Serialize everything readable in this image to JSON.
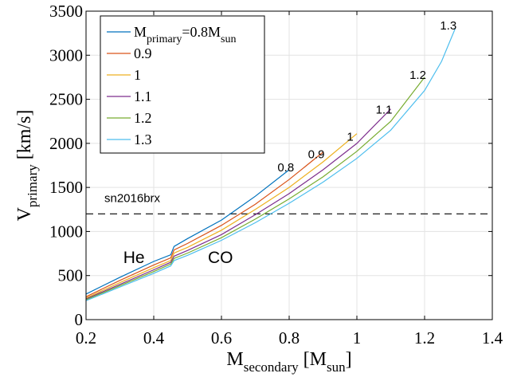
{
  "chart_data": {
    "type": "line",
    "xlabel": {
      "main": "M",
      "sub": "secondary",
      "mid": " [M",
      "sub2": "sun",
      "end": "]"
    },
    "ylabel": {
      "main": "V",
      "sub": "primary",
      "end": " [km/s]"
    },
    "xlim": [
      0.2,
      1.4
    ],
    "ylim": [
      0,
      3500
    ],
    "x_ticks": [
      {
        "value": 0.2,
        "label": "0.2"
      },
      {
        "value": 0.4,
        "label": "0.4"
      },
      {
        "value": 0.6,
        "label": "0.6"
      },
      {
        "value": 0.8,
        "label": "0.8"
      },
      {
        "value": 1.0,
        "label": "1"
      },
      {
        "value": 1.2,
        "label": "1.2"
      },
      {
        "value": 1.4,
        "label": "1.4"
      }
    ],
    "y_ticks": [
      {
        "value": 0,
        "label": "0"
      },
      {
        "value": 500,
        "label": "500"
      },
      {
        "value": 1000,
        "label": "1000"
      },
      {
        "value": 1500,
        "label": "1500"
      },
      {
        "value": 2000,
        "label": "2000"
      },
      {
        "value": 2500,
        "label": "2500"
      },
      {
        "value": 3000,
        "label": "3000"
      },
      {
        "value": 3500,
        "label": "3500"
      }
    ],
    "grid": true,
    "legend": {
      "placement": "top-left",
      "first": {
        "main": "M",
        "sub": "primary",
        "mid": "=0.8M",
        "sub2": "sun"
      }
    },
    "series": [
      {
        "name": "0.8",
        "label": "0.8",
        "color": "#0072bd",
        "end_label_at": [
          0.79,
          1680
        ],
        "x": [
          0.2,
          0.3,
          0.4,
          0.45,
          0.46,
          0.5,
          0.6,
          0.7,
          0.8
        ],
        "y": [
          290,
          480,
          660,
          735,
          830,
          920,
          1130,
          1400,
          1700
        ]
      },
      {
        "name": "0.9",
        "label": "0.9",
        "color": "#d95319",
        "end_label_at": [
          0.88,
          1830
        ],
        "x": [
          0.2,
          0.3,
          0.4,
          0.45,
          0.46,
          0.5,
          0.6,
          0.7,
          0.8,
          0.9
        ],
        "y": [
          260,
          445,
          620,
          700,
          790,
          865,
          1070,
          1310,
          1590,
          1900
        ]
      },
      {
        "name": "1",
        "label": "1",
        "color": "#edb120",
        "end_label_at": [
          0.98,
          2030
        ],
        "x": [
          0.2,
          0.3,
          0.4,
          0.45,
          0.46,
          0.5,
          0.6,
          0.7,
          0.8,
          0.9,
          1.0
        ],
        "y": [
          245,
          420,
          590,
          670,
          755,
          820,
          1015,
          1250,
          1500,
          1790,
          2110
        ]
      },
      {
        "name": "1.1",
        "label": "1.1",
        "color": "#7e2f8e",
        "end_label_at": [
          1.08,
          2340
        ],
        "x": [
          0.2,
          0.3,
          0.4,
          0.45,
          0.46,
          0.5,
          0.6,
          0.7,
          0.8,
          0.9,
          1.0,
          1.1
        ],
        "y": [
          235,
          400,
          565,
          650,
          720,
          785,
          965,
          1190,
          1430,
          1700,
          2000,
          2390
        ]
      },
      {
        "name": "1.2",
        "label": "1.2",
        "color": "#77ac30",
        "end_label_at": [
          1.18,
          2730
        ],
        "x": [
          0.2,
          0.3,
          0.4,
          0.45,
          0.46,
          0.5,
          0.6,
          0.7,
          0.8,
          0.9,
          1.0,
          1.1,
          1.2
        ],
        "y": [
          225,
          385,
          545,
          630,
          695,
          755,
          930,
          1140,
          1370,
          1620,
          1910,
          2250,
          2750
        ]
      },
      {
        "name": "1.3",
        "label": "1.3",
        "color": "#4dbeee",
        "end_label_at": [
          1.27,
          3290
        ],
        "x": [
          0.2,
          0.3,
          0.4,
          0.45,
          0.46,
          0.5,
          0.6,
          0.7,
          0.8,
          0.9,
          1.0,
          1.1,
          1.2,
          1.25,
          1.29
        ],
        "y": [
          215,
          370,
          525,
          610,
          670,
          730,
          900,
          1100,
          1320,
          1560,
          1830,
          2150,
          2600,
          2930,
          3300
        ]
      }
    ],
    "reference_line": {
      "y": 1200,
      "label": "sn2016brx",
      "style": "dashed",
      "color": "#000000"
    },
    "annotations": [
      {
        "text": "He",
        "x": 0.31,
        "y": 640
      },
      {
        "text": "CO",
        "x": 0.56,
        "y": 640
      }
    ]
  }
}
